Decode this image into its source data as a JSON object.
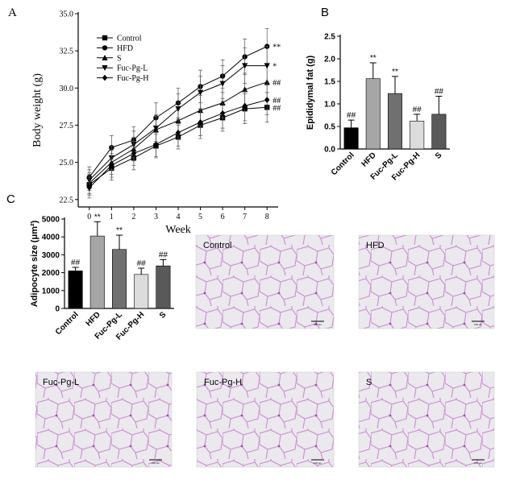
{
  "panels": [
    "A",
    "B",
    "C"
  ],
  "chart_data": [
    {
      "type": "line",
      "xlabel": "Week",
      "ylabel": "Body weight (g)",
      "x": [
        0,
        1,
        2,
        3,
        4,
        5,
        6,
        7,
        8
      ],
      "xlim": [
        -0.5,
        8.5
      ],
      "xticks": [
        0,
        1,
        2,
        3,
        4,
        5,
        6,
        7,
        8
      ],
      "ylim": [
        22,
        35
      ],
      "yticks": [
        22.5,
        {
          "value": 25,
          "label": "25.0"
        },
        27.5,
        {
          "value": 30,
          "label": "30.0"
        },
        32.5,
        {
          "value": 35,
          "label": "35.0"
        }
      ],
      "series": [
        {
          "name": "Control",
          "marker": "square",
          "color": "#000000",
          "annotation": "##",
          "values": [
            23.5,
            24.6,
            25.3,
            26.1,
            26.7,
            27.5,
            28.0,
            28.6,
            28.7
          ],
          "errors": [
            0.7,
            0.8,
            0.8,
            0.8,
            0.8,
            0.9,
            0.9,
            1.0,
            1.0
          ]
        },
        {
          "name": "HFD",
          "marker": "circle",
          "color": "#000000",
          "annotation": "**",
          "values": [
            24.0,
            26.0,
            26.5,
            28.0,
            29.0,
            30.1,
            30.8,
            32.1,
            32.8
          ],
          "errors": [
            0.7,
            0.8,
            0.9,
            1.0,
            1.0,
            1.1,
            1.1,
            1.2,
            1.2
          ]
        },
        {
          "name": "S",
          "marker": "up",
          "color": "#000000",
          "annotation": "##",
          "values": [
            23.6,
            25.0,
            25.9,
            27.2,
            27.8,
            28.5,
            29.0,
            29.9,
            30.4
          ],
          "errors": [
            0.7,
            0.8,
            0.8,
            0.9,
            0.9,
            1.0,
            1.0,
            1.1,
            1.1
          ]
        },
        {
          "name": "Fuc-Pg-L",
          "marker": "down",
          "color": "#000000",
          "annotation": "*",
          "values": [
            23.8,
            25.3,
            26.2,
            27.3,
            28.6,
            29.7,
            30.3,
            31.5,
            31.5
          ],
          "errors": [
            0.7,
            0.8,
            0.9,
            0.9,
            1.0,
            1.1,
            1.2,
            1.2,
            1.3
          ]
        },
        {
          "name": "Fuc-Pg-H",
          "marker": "diamond",
          "color": "#000000",
          "annotation": "##",
          "values": [
            23.3,
            24.8,
            25.6,
            26.2,
            27.0,
            27.7,
            28.3,
            28.8,
            29.2
          ],
          "errors": [
            0.7,
            0.8,
            0.8,
            0.8,
            0.9,
            0.9,
            1.0,
            1.0,
            1.0
          ]
        }
      ]
    },
    {
      "type": "bar",
      "ylabel": "Epididymal fat (g)",
      "categories": [
        "Control",
        "HFD",
        "Fuc-Pg-L",
        "Fuc-Pg-H",
        "S"
      ],
      "values": [
        0.47,
        1.56,
        1.23,
        0.62,
        0.77
      ],
      "errors": [
        0.17,
        0.35,
        0.38,
        0.15,
        0.4
      ],
      "annotations": [
        "##",
        "**",
        "**",
        "##",
        "##"
      ],
      "colors": [
        "#000000",
        "#a6a6a6",
        "#707070",
        "#dcdcdc",
        "#595959"
      ],
      "ylim": [
        0,
        2.5
      ],
      "yticks": [
        {
          "value": 0,
          "label": "0.0"
        },
        0.5,
        {
          "value": 1,
          "label": "1.0"
        },
        1.5,
        {
          "value": 2,
          "label": "2.0"
        },
        2.5
      ]
    },
    {
      "type": "bar",
      "ylabel": "Adipocyte size (μm²)",
      "categories": [
        "Control",
        "HFD",
        "Fuc-Pg-L",
        "Fuc-Pg-H",
        "S"
      ],
      "values": [
        2100,
        4050,
        3300,
        1900,
        2380
      ],
      "errors": [
        200,
        800,
        800,
        350,
        350
      ],
      "annotations": [
        "##",
        "**",
        "**",
        "##",
        "##"
      ],
      "colors": [
        "#000000",
        "#a6a6a6",
        "#707070",
        "#dcdcdc",
        "#595959"
      ],
      "ylim": [
        0,
        5000
      ],
      "yticks": [
        0,
        1000,
        2000,
        3000,
        4000,
        5000
      ]
    }
  ],
  "images": [
    {
      "label": "Control",
      "scale_bar": "100 μm"
    },
    {
      "label": "HFD",
      "scale_bar": "100 μm"
    },
    {
      "label": "Fuc-Pg-L",
      "scale_bar": "100 μm"
    },
    {
      "label": "Fuc-Pg-H",
      "scale_bar": "100 μm"
    },
    {
      "label": "S",
      "scale_bar": "100 μm"
    }
  ]
}
